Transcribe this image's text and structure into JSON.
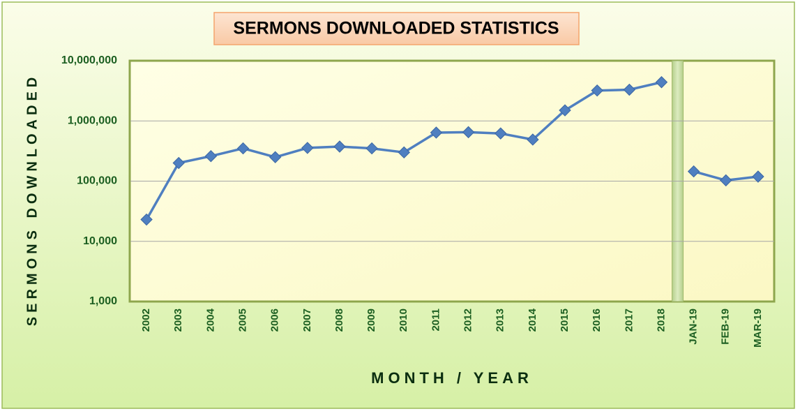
{
  "chart_data": {
    "type": "line",
    "title": "SERMONS DOWNLOADED STATISTICS",
    "y_label": "SERMONS DOWNLOADED",
    "x_label": "MONTH / YEAR",
    "categories": [
      "2002",
      "2003",
      "2004",
      "2005",
      "2006",
      "2007",
      "2008",
      "2009",
      "2010",
      "2011",
      "2012",
      "2013",
      "2014",
      "2015",
      "2016",
      "2017",
      "2018",
      "JAN-19",
      "FEB-19",
      "MAR-19"
    ],
    "series": [
      {
        "color": "#4f7fc0",
        "values": [
          23000,
          200000,
          260000,
          350000,
          250000,
          356000,
          375000,
          350000,
          300000,
          640000,
          650000,
          620000,
          490000,
          1500000,
          3200000,
          3300000,
          4400000,
          null,
          null,
          null
        ]
      },
      {
        "color": "#4f7fc0",
        "values": [
          null,
          null,
          null,
          null,
          null,
          null,
          null,
          null,
          null,
          null,
          null,
          null,
          null,
          null,
          null,
          null,
          null,
          145000,
          103000,
          119000
        ]
      }
    ],
    "log_scale": true,
    "ylim": [
      1000,
      10000000
    ],
    "yticks": [
      {
        "value": 1000,
        "label": "1,000"
      },
      {
        "value": 10000,
        "label": "10,000"
      },
      {
        "value": 100000,
        "label": "100,000"
      },
      {
        "value": 1000000,
        "label": "1,000,000"
      },
      {
        "value": 10000000,
        "label": "10,000,000"
      }
    ],
    "grid": true
  }
}
